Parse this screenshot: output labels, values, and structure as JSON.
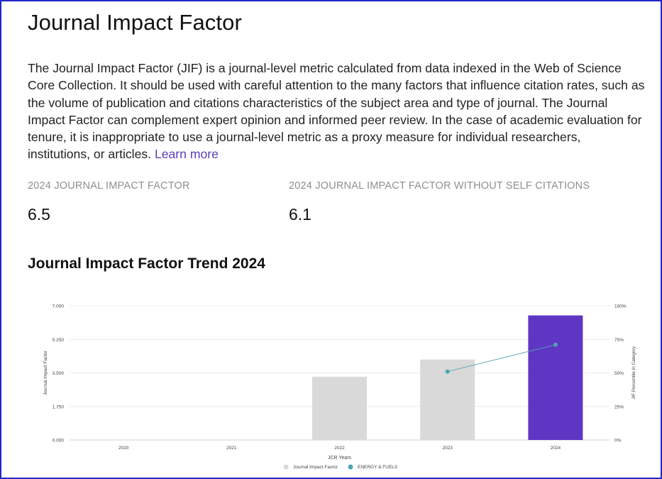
{
  "page": {
    "title": "Journal Impact Factor",
    "description": "The Journal Impact Factor (JIF) is a journal-level metric calculated from data indexed in the Web of Science Core Collection. It should be used with careful attention to the many factors that influence citation rates, such as the volume of publication and citations characteristics of the subject area and type of journal. The Journal Impact Factor can complement expert opinion and informed peer review. In the case of academic evaluation for tenure, it is inappropriate to use a journal-level metric as a proxy measure for individual researchers, institutions, or articles.",
    "learn_more": "Learn more"
  },
  "metrics": {
    "jif_label": "2024 JOURNAL IMPACT FACTOR",
    "jif_value": "6.5",
    "jif_no_self_label": "2024 JOURNAL IMPACT FACTOR WITHOUT SELF CITATIONS",
    "jif_no_self_value": "6.1"
  },
  "trend_title": "Journal Impact Factor Trend 2024",
  "colors": {
    "bar_default": "#d9d9d9",
    "bar_highlight": "#5f35c4",
    "line": "#4fa3b0",
    "link": "#5a3fb5"
  },
  "chart_data": {
    "type": "bar",
    "title": "",
    "xlabel": "JCR Years",
    "ylabel": "Journal Impact Factor",
    "y2label": "JIF Percentile in Category",
    "categories": [
      "2020",
      "2021",
      "2022",
      "2023",
      "2024"
    ],
    "ylim": [
      0,
      7
    ],
    "yticks": [
      "0.000",
      "1.750",
      "3.500",
      "5.250",
      "7.000"
    ],
    "y2lim": [
      0,
      100
    ],
    "y2ticks": [
      "0%",
      "25%",
      "50%",
      "75%",
      "100%"
    ],
    "grid": true,
    "legend_position": "bottom-center",
    "series": [
      {
        "name": "Journal Impact Factor",
        "kind": "bar",
        "values": [
          null,
          null,
          3.3,
          4.2,
          6.5
        ],
        "highlight_index": 4
      },
      {
        "name": "ENERGY & FUELS",
        "kind": "line",
        "axis": "right",
        "values": [
          null,
          null,
          null,
          51,
          71
        ]
      }
    ]
  }
}
